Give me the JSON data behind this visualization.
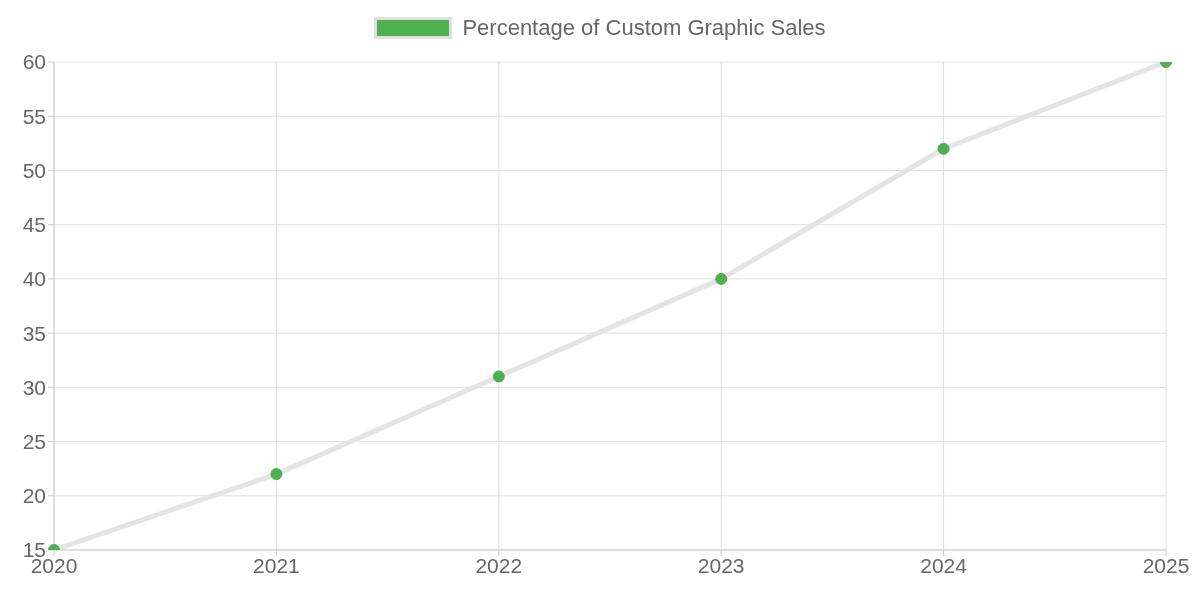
{
  "chart_data": {
    "type": "line",
    "categories": [
      "2020",
      "2021",
      "2022",
      "2023",
      "2024",
      "2025"
    ],
    "series": [
      {
        "name": "Percentage of Custom Graphic Sales",
        "color": "#4caf50",
        "values": [
          15,
          22,
          31,
          40,
          52,
          60
        ]
      }
    ],
    "ylim": [
      15,
      60
    ],
    "yticks": [
      15,
      20,
      25,
      30,
      35,
      40,
      45,
      50,
      55,
      60
    ],
    "grid": true,
    "legend": "top",
    "marker": "circle"
  }
}
